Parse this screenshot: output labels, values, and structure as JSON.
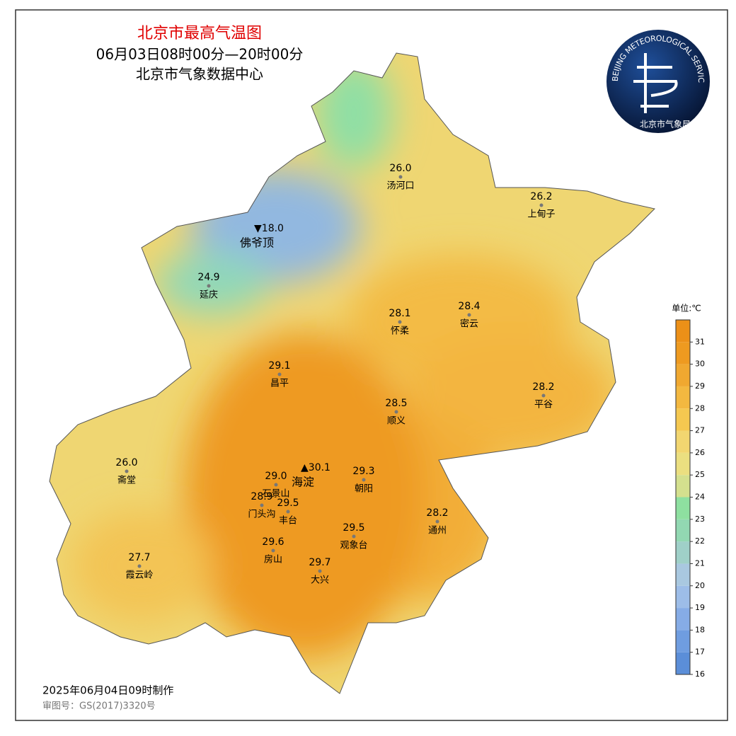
{
  "header": {
    "title": "北京市最高气温图",
    "subtitle": "06月03日08时00分—20时00分",
    "agency": "北京市气象数据中心"
  },
  "logo": {
    "ring_text": "BEIJING METEOROLOGICAL SERVICE",
    "name": "北京市气象局"
  },
  "stations": [
    {
      "value": "26.0",
      "name": "汤河口"
    },
    {
      "value": "26.2",
      "name": "上甸子"
    },
    {
      "value": "24.9",
      "name": "延庆"
    },
    {
      "value": "28.1",
      "name": "怀柔"
    },
    {
      "value": "28.4",
      "name": "密云"
    },
    {
      "value": "29.1",
      "name": "昌平"
    },
    {
      "value": "28.2",
      "name": "平谷"
    },
    {
      "value": "28.5",
      "name": "顺义"
    },
    {
      "value": "26.0",
      "name": "斋堂"
    },
    {
      "value": "29.0",
      "name": "石景山"
    },
    {
      "value": "28.9",
      "name": "门头沟"
    },
    {
      "value": "29.5",
      "name": "丰台"
    },
    {
      "value": "29.3",
      "name": "朝阳"
    },
    {
      "value": "28.2",
      "name": "通州"
    },
    {
      "value": "29.5",
      "name": "观象台"
    },
    {
      "value": "29.6",
      "name": "房山"
    },
    {
      "value": "27.7",
      "name": "霞云岭"
    },
    {
      "value": "29.7",
      "name": "大兴"
    }
  ],
  "extremes": [
    {
      "label": "▼18.0",
      "name": "佛爷顶"
    },
    {
      "label": "▲30.1",
      "name": "海淀"
    }
  ],
  "legend": {
    "unit": "单位:℃",
    "lim": [
      16,
      32
    ],
    "ticks": [
      16,
      17,
      18,
      19,
      20,
      21,
      22,
      23,
      24,
      25,
      26,
      27,
      28,
      29,
      30,
      31
    ],
    "colors": [
      "#5b8ed8",
      "#6f9de0",
      "#86ace6",
      "#9dbde8",
      "#a9c8e0",
      "#9fd0c8",
      "#92d8b2",
      "#8ee0a0",
      "#d4e08e",
      "#ebdf80",
      "#f2d670",
      "#f5c850",
      "#f3b840",
      "#f0a830",
      "#ee9a20",
      "#ec9018"
    ]
  },
  "footer": {
    "made": "2025年06月04日09时制作",
    "approval": "审图号：GS(2017)3320号"
  }
}
